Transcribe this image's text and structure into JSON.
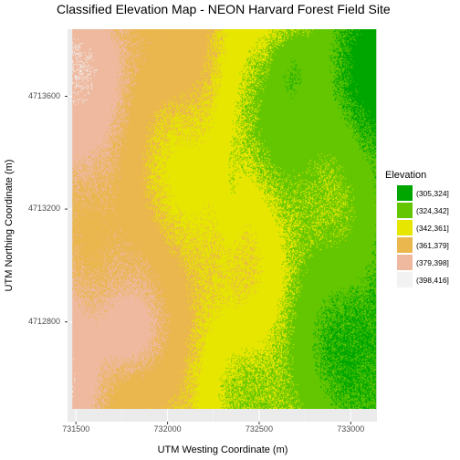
{
  "chart_data": {
    "type": "heatmap",
    "title": "Classified Elevation Map - NEON Harvard Forest Field Site",
    "xlabel": "UTM Westing Coordinate (m)",
    "ylabel": "UTM Northing Coordinate (m)",
    "x_ticks": [
      "731500",
      "732000",
      "732500",
      "733000"
    ],
    "x_tick_values": [
      731500,
      732000,
      732500,
      733000
    ],
    "y_ticks": [
      "4713600",
      "4713200",
      "4712800"
    ],
    "y_tick_values": [
      4713600,
      4713200,
      4712800
    ],
    "xlim": [
      731454,
      733143
    ],
    "ylim": [
      4712446,
      4713838
    ],
    "raster_extent": {
      "x": [
        731480,
        733140
      ],
      "y": [
        4712490,
        4713838
      ]
    },
    "legend": {
      "title": "Elevation",
      "placement": "right",
      "entries": [
        {
          "label": "(305,324]",
          "color": "#00a600"
        },
        {
          "label": "(324,342]",
          "color": "#63c600"
        },
        {
          "label": "(342,361]",
          "color": "#e6e600"
        },
        {
          "label": "(361,379]",
          "color": "#eab64e"
        },
        {
          "label": "(379,398]",
          "color": "#eeb99f"
        },
        {
          "label": "(398,416]",
          "color": "#f2f2f2"
        }
      ]
    },
    "grid": true
  }
}
